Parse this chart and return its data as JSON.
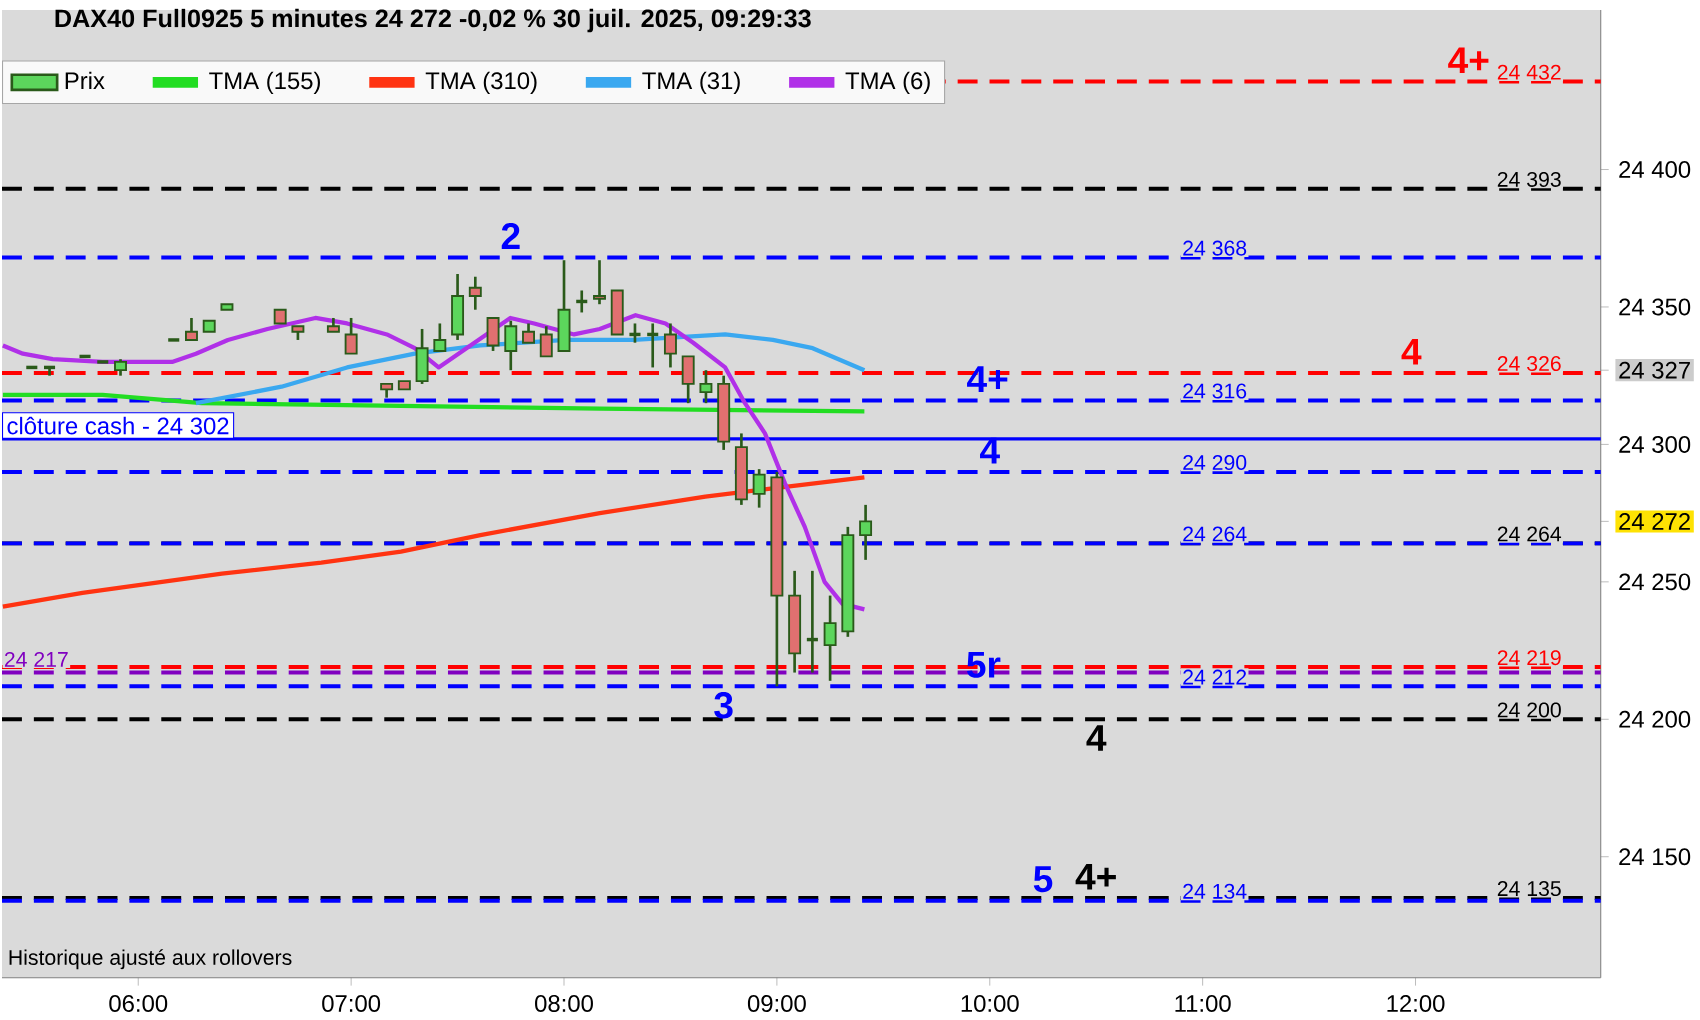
{
  "chart_data": {
    "type": "candlestick",
    "title": "DAX40 Full0925 5 minutes 24 272 -0,02 % 30 juil. 2025, 09:29:33",
    "xlim": [
      5.36,
      12.87
    ],
    "ylim": [
      24106,
      24458
    ],
    "xticks": [
      {
        "value": 6,
        "label": "06:00"
      },
      {
        "value": 7,
        "label": "07:00"
      },
      {
        "value": 8,
        "label": "08:00"
      },
      {
        "value": 9,
        "label": "09:00"
      },
      {
        "value": 10,
        "label": "10:00"
      },
      {
        "value": 11,
        "label": "11:00"
      },
      {
        "value": 12,
        "label": "12:00"
      }
    ],
    "yticks": [
      {
        "value": 24150,
        "label": "24 150"
      },
      {
        "value": 24200,
        "label": "24 200"
      },
      {
        "value": 24250,
        "label": "24 250"
      },
      {
        "value": 24272,
        "label": "24 272"
      },
      {
        "value": 24300,
        "label": "24 300"
      },
      {
        "value": 24327,
        "label": "24 327"
      },
      {
        "value": 24350,
        "label": "24 350"
      },
      {
        "value": 24400,
        "label": "24 400"
      }
    ],
    "legend": "top left",
    "grid": false,
    "marker": "none",
    "series": [
      {
        "name": "Prix",
        "color": "#2a5a1a",
        "x": [
          5.5,
          5.5833,
          5.75,
          5.8333,
          5.9167,
          6.1667,
          6.25,
          6.3333,
          6.4167,
          6.6667,
          6.75,
          6.9167,
          7.0,
          7.1667,
          7.25,
          7.3333,
          7.4167,
          7.5,
          7.5833,
          7.6667,
          7.75,
          7.8333,
          7.9167,
          8.0,
          8.0833,
          8.1667,
          8.25,
          8.3333,
          8.4167,
          8.5,
          8.5833,
          8.6667,
          8.75,
          8.8333,
          8.9167,
          9.0,
          9.0833,
          9.1667,
          9.25,
          9.3333,
          9.4167
        ],
        "ohlc": [
          [
            24328,
            24328,
            24328,
            24328
          ],
          [
            24328,
            24328,
            24325,
            24328
          ],
          [
            24332,
            24332,
            24332,
            24332
          ],
          [
            24330,
            24330,
            24330,
            24330
          ],
          [
            24327,
            24331,
            24325,
            24330
          ],
          [
            24338,
            24338,
            24338,
            24338
          ],
          [
            24341,
            24346,
            24338,
            24338
          ],
          [
            24341,
            24345,
            24341,
            24345
          ],
          [
            24349,
            24351,
            24349,
            24351
          ],
          [
            24349,
            24349,
            24344,
            24344
          ],
          [
            24343,
            24343,
            24338,
            24341
          ],
          [
            24343,
            24346,
            24341,
            24341
          ],
          [
            24340,
            24346,
            24333,
            24333
          ],
          [
            24322,
            24322,
            24317,
            24320
          ],
          [
            24323,
            24323,
            24320,
            24320
          ],
          [
            24323,
            24342,
            24322,
            24335
          ],
          [
            24334,
            24344,
            24334,
            24338
          ],
          [
            24340,
            24362,
            24338,
            24354
          ],
          [
            24357,
            24361,
            24349,
            24354
          ],
          [
            24346,
            24346,
            24334,
            24336
          ],
          [
            24334,
            24345,
            24327,
            24343
          ],
          [
            24341,
            24344,
            24337,
            24337
          ],
          [
            24340,
            24343,
            24332,
            24332
          ],
          [
            24334,
            24367,
            24334,
            24349
          ],
          [
            24352,
            24356,
            24348,
            24352
          ],
          [
            24354,
            24367,
            24351,
            24353
          ],
          [
            24356,
            24356,
            24340,
            24340
          ],
          [
            24340,
            24344,
            24337,
            24340
          ],
          [
            24340,
            24344,
            24328,
            24340
          ],
          [
            24340,
            24344,
            24328,
            24333
          ],
          [
            24332,
            24332,
            24315,
            24322
          ],
          [
            24319,
            24327,
            24315,
            24322
          ],
          [
            24322,
            24325,
            24298,
            24301
          ],
          [
            24299,
            24304,
            24278,
            24280
          ],
          [
            24282,
            24291,
            24277,
            24289
          ],
          [
            24288,
            24290,
            24212,
            24245
          ],
          [
            24245,
            24254,
            24217,
            24224
          ],
          [
            24229,
            24254,
            24217,
            24229
          ],
          [
            24227,
            24245,
            24214,
            24235
          ],
          [
            24232,
            24270,
            24230,
            24267
          ],
          [
            24267,
            24278,
            24258,
            24272
          ]
        ]
      },
      {
        "name": "TMA (155)",
        "type": "line",
        "color": "#22dd22",
        "x": [
          5.364,
          5.832,
          6.299,
          7.234,
          8.168,
          9.411
        ],
        "values": [
          24318,
          24318,
          24315,
          24314,
          24313,
          24312
        ]
      },
      {
        "name": "TMA (310)",
        "type": "line",
        "color": "#ff3311",
        "x": [
          5.364,
          5.738,
          5.925,
          6.393,
          6.86,
          7.234,
          7.607,
          8.168,
          8.664,
          8.981,
          9.411
        ],
        "values": [
          24241,
          24246,
          24248,
          24253,
          24257,
          24261,
          24267,
          24275,
          24281,
          24284,
          24288
        ]
      },
      {
        "name": "TMA (31)",
        "type": "line",
        "color": "#3aa8f0",
        "x": [
          6.271,
          6.673,
          6.981,
          7.299,
          7.607,
          8.009,
          8.327,
          8.757,
          8.981,
          9.168,
          9.411
        ],
        "values": [
          24315,
          24321,
          24328,
          24333,
          24336,
          24338,
          24338,
          24340,
          24338,
          24335,
          24327
        ]
      },
      {
        "name": "TMA (6)",
        "type": "line",
        "color": "#b030e8",
        "x": [
          5.364,
          5.458,
          5.598,
          5.832,
          6.159,
          6.271,
          6.421,
          6.607,
          6.832,
          6.981,
          7.168,
          7.299,
          7.411,
          7.542,
          7.748,
          7.86,
          8.047,
          8.168,
          8.336,
          8.477,
          8.607,
          8.757,
          8.85,
          8.944,
          9.037,
          9.131,
          9.224,
          9.308,
          9.411
        ],
        "values": [
          24336,
          24333,
          24331,
          24330,
          24330,
          24333,
          24338,
          24342,
          24346,
          24344,
          24340,
          24335,
          24328,
          24335,
          24346,
          24344,
          24340,
          24342,
          24347,
          24344,
          24337,
          24328,
          24315,
          24304,
          24286,
          24270,
          24250,
          24242,
          24240
        ]
      }
    ],
    "ref_lines": [
      {
        "axis": "y",
        "value": 24432,
        "label": "24 432",
        "color": "#ff0000",
        "line_style": "dashed"
      },
      {
        "axis": "y",
        "value": 24393,
        "label": "24 393",
        "color": "#000000",
        "line_style": "dashed"
      },
      {
        "axis": "y",
        "value": 24368,
        "label": "24 368",
        "color": "#0000ff",
        "line_style": "dashed"
      },
      {
        "axis": "y",
        "value": 24326,
        "label": "24 326",
        "color": "#ff0000",
        "line_style": "dashed"
      },
      {
        "axis": "y",
        "value": 24316,
        "label": "24 316",
        "color": "#0000ff",
        "line_style": "dashed"
      },
      {
        "axis": "y",
        "value": 24302,
        "label": "clôture cash -  24 302",
        "color": "#0000ff",
        "line_style": "solid"
      },
      {
        "axis": "y",
        "value": 24290,
        "label": "24 290",
        "color": "#0000ff",
        "line_style": "dashed"
      },
      {
        "axis": "y",
        "value": 24264,
        "label": "24 264",
        "color": "#000000",
        "line_style": "dashed"
      },
      {
        "axis": "y",
        "value": 24264,
        "label": "24 264",
        "color": "#0000ff",
        "line_style": "dashed"
      },
      {
        "axis": "y",
        "value": 24219,
        "label": "24 219",
        "color": "#ff0000",
        "line_style": "dashed"
      },
      {
        "axis": "y",
        "value": 24217,
        "label": "24 217",
        "color": "#8000c0",
        "line_style": "dashed"
      },
      {
        "axis": "y",
        "value": 24212,
        "label": "24 212",
        "color": "#0000ff",
        "line_style": "dashed"
      },
      {
        "axis": "y",
        "value": 24200,
        "label": "24 200",
        "color": "#000000",
        "line_style": "dashed"
      },
      {
        "axis": "y",
        "value": 24135,
        "label": "24 135",
        "color": "#000000",
        "line_style": "dashed"
      },
      {
        "axis": "y",
        "value": 24134,
        "label": "24 134",
        "color": "#0000ff",
        "line_style": "dashed"
      }
    ],
    "annotations": [
      {
        "text": "2",
        "x": 7.75,
        "y": 24368
      },
      {
        "text": "3",
        "x": 8.75,
        "y": 24212
      },
      {
        "text": "4+",
        "x": 12.25,
        "y": 24432
      },
      {
        "text": "4",
        "x": 11.98,
        "y": 24326
      },
      {
        "text": "4+",
        "x": 9.99,
        "y": 24316
      },
      {
        "text": "4",
        "x": 10.0,
        "y": 24290
      },
      {
        "text": "5r",
        "x": 9.97,
        "y": 24212
      },
      {
        "text": "4",
        "x": 10.5,
        "y": 24200
      },
      {
        "text": "5",
        "x": 10.25,
        "y": 24134
      },
      {
        "text": "4+",
        "x": 10.5,
        "y": 24135
      },
      "Historique ajusté aux rollovers"
    ]
  }
}
